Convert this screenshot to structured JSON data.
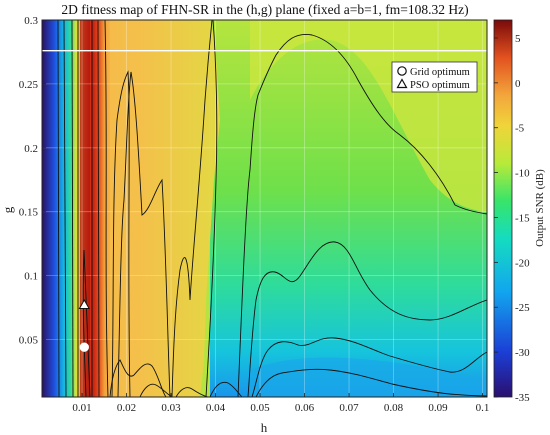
{
  "chart_data": {
    "type": "heatmap",
    "title": "2D fitness map of FHN-SR in the (h,g) plane (fixed a=b=1, fm=108.32 Hz)",
    "xlabel": "h",
    "ylabel": "g",
    "colorbar_label": "Output SNR (dB)",
    "xlim": [
      0.001,
      0.101
    ],
    "ylim": [
      0.005,
      0.3
    ],
    "x_ticks": [
      0.01,
      0.02,
      0.03,
      0.04,
      0.05,
      0.06,
      0.07,
      0.08,
      0.09,
      0.1
    ],
    "x_tick_labels": [
      "0.01",
      "0.02",
      "0.03",
      "0.04",
      "0.05",
      "0.06",
      "0.07",
      "0.08",
      "0.09",
      "0.1"
    ],
    "y_ticks": [
      0.05,
      0.1,
      0.15,
      0.2,
      0.25,
      0.3
    ],
    "y_tick_labels": [
      "0.05",
      "0.1",
      "0.15",
      "0.2",
      "0.25",
      "0.3"
    ],
    "color_range": [
      -35,
      7
    ],
    "colorbar_ticks": [
      5,
      0,
      -5,
      -10,
      -15,
      -20,
      -25,
      -30,
      -35
    ],
    "colorbar_tick_labels": [
      "5",
      "0",
      "-5",
      "-10",
      "-15",
      "-20",
      "-25",
      "-30",
      "-35"
    ],
    "colormap": "jet",
    "grid": true,
    "legend": {
      "placement": "top-right",
      "entries": [
        {
          "label": "Grid optimum",
          "marker": "circle"
        },
        {
          "label": "PSO optimum",
          "marker": "triangle"
        }
      ]
    },
    "points": [
      {
        "name": "Grid optimum",
        "marker": "circle",
        "h": 0.0105,
        "g": 0.044
      },
      {
        "name": "PSO optimum",
        "marker": "triangle",
        "h": 0.0105,
        "g": 0.077
      }
    ],
    "reference_line_g": 0.276
  }
}
